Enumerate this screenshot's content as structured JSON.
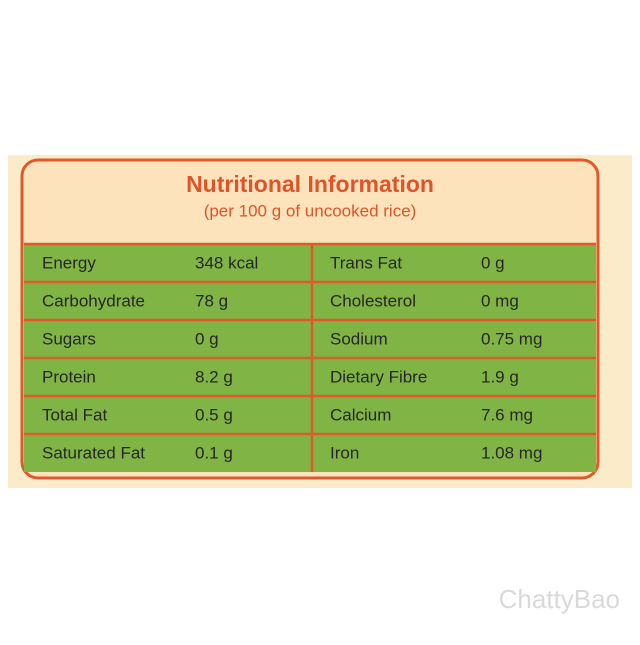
{
  "header": {
    "title": "Nutritional Information",
    "subtitle": "(per 100 g of uncooked rice)"
  },
  "table": {
    "rows": [
      [
        "Energy",
        "348 kcal",
        "Trans Fat",
        "0 g"
      ],
      [
        "Carbohydrate",
        "78 g",
        "Cholesterol",
        "0 mg"
      ],
      [
        "Sugars",
        "0 g",
        "Sodium",
        "0.75 mg"
      ],
      [
        "Protein",
        "8.2 g",
        "Dietary Fibre",
        "1.9 g"
      ],
      [
        "Total Fat",
        "0.5 g",
        "Calcium",
        "7.6 mg"
      ],
      [
        "Saturated Fat",
        "0.1 g",
        "Iron",
        "1.08 mg"
      ]
    ]
  },
  "watermark": "ChattyBao"
}
